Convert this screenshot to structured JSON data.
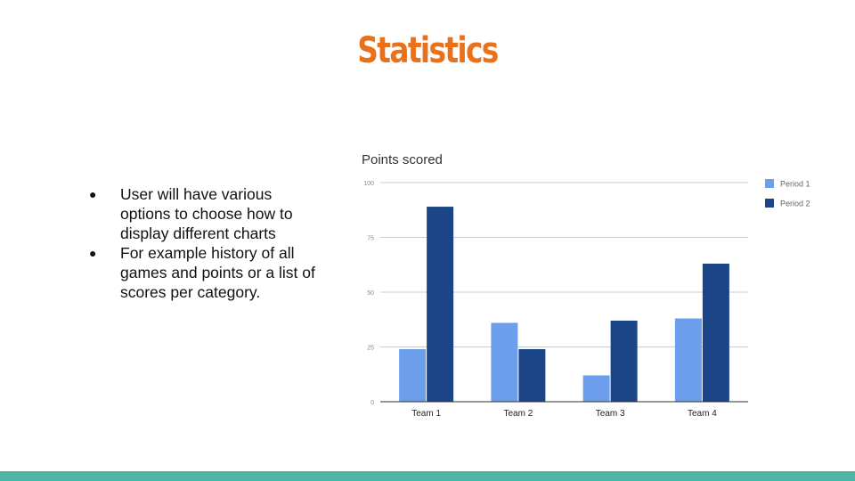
{
  "slide": {
    "title": "Statistics",
    "bullets": [
      "User will have various options to choose how to display different charts",
      "For example history of all games and points or a list of scores per category."
    ],
    "bullet_glyph": "●"
  },
  "colors": {
    "title": "#e8711a",
    "period1": "#6d9eeb",
    "period2": "#1c4587",
    "footer": "#4fb6a6",
    "grid": "#cccccc"
  },
  "chart_data": {
    "type": "bar",
    "title": "Points scored",
    "categories": [
      "Team 1",
      "Team 2",
      "Team 3",
      "Team 4"
    ],
    "series": [
      {
        "name": "Period 1",
        "values": [
          24,
          36,
          12,
          38
        ],
        "color": "#6d9eeb"
      },
      {
        "name": "Period 2",
        "values": [
          89,
          24,
          37,
          63
        ],
        "color": "#1c4587"
      }
    ],
    "ylim": [
      0,
      100
    ],
    "yticks": [
      0,
      25,
      50,
      75,
      100
    ],
    "grid": true,
    "legend": "right",
    "xlabel": "",
    "ylabel": ""
  }
}
